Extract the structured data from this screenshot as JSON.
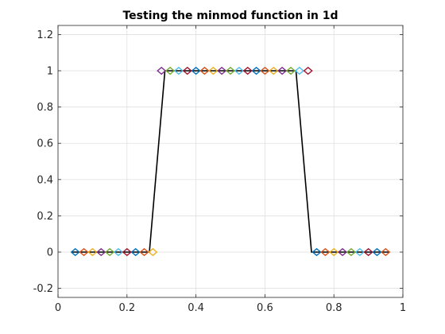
{
  "chart_data": {
    "type": "line",
    "title": "Testing the minmod function in 1d",
    "xlabel": "",
    "ylabel": "",
    "xlim": [
      0,
      1
    ],
    "ylim": [
      -0.25,
      1.25
    ],
    "xticks": [
      0,
      0.2,
      0.4,
      0.6,
      0.8,
      1
    ],
    "xtick_labels": [
      "0",
      "0.2",
      "0.4",
      "0.6",
      "0.8",
      "1"
    ],
    "yticks": [
      -0.2,
      0,
      0.2,
      0.4,
      0.6,
      0.8,
      1,
      1.2
    ],
    "ytick_labels": [
      "-0.2",
      "0",
      "0.2",
      "0.4",
      "0.6",
      "0.8",
      "1",
      "1.2"
    ],
    "grid": true,
    "line": {
      "color": "#000000",
      "x": [
        0.04,
        0.265,
        0.31,
        0.69,
        0.735,
        0.96
      ],
      "y": [
        0,
        0,
        1,
        1,
        0,
        0
      ]
    },
    "markers": {
      "shape": "diamond",
      "palette": [
        "#0072BD",
        "#D95319",
        "#EDB120",
        "#7E2F8E",
        "#77AC30",
        "#4DBEEE",
        "#A2142F"
      ],
      "x": [
        0.05,
        0.075,
        0.1,
        0.125,
        0.15,
        0.175,
        0.2,
        0.225,
        0.25,
        0.275,
        0.3,
        0.325,
        0.35,
        0.375,
        0.4,
        0.425,
        0.45,
        0.475,
        0.5,
        0.525,
        0.55,
        0.575,
        0.6,
        0.625,
        0.65,
        0.675,
        0.7,
        0.725,
        0.75,
        0.775,
        0.8,
        0.825,
        0.85,
        0.875,
        0.9,
        0.925,
        0.95
      ],
      "y": [
        0,
        0,
        0,
        0,
        0,
        0,
        0,
        0,
        0,
        0,
        1,
        1,
        1,
        1,
        1,
        1,
        1,
        1,
        1,
        1,
        1,
        1,
        1,
        1,
        1,
        1,
        1,
        1,
        0,
        0,
        0,
        0,
        0,
        0,
        0,
        0,
        0
      ]
    }
  }
}
